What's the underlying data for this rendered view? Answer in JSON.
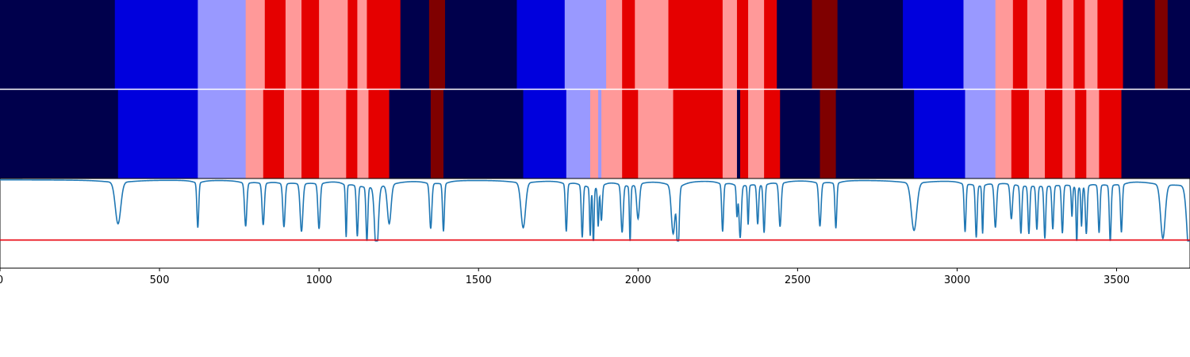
{
  "chart_data": [
    {
      "panel": "top-strip",
      "type": "heatmap",
      "xlim": [
        0,
        3730
      ],
      "segments": [
        {
          "start": 0,
          "end": 360,
          "color": "#00004c"
        },
        {
          "start": 360,
          "end": 620,
          "color": "#0000dd"
        },
        {
          "start": 620,
          "end": 770,
          "color": "#9999ff"
        },
        {
          "start": 770,
          "end": 830,
          "color": "#ff9999"
        },
        {
          "start": 830,
          "end": 895,
          "color": "#e50000"
        },
        {
          "start": 895,
          "end": 945,
          "color": "#ff9999"
        },
        {
          "start": 945,
          "end": 1000,
          "color": "#e50000"
        },
        {
          "start": 1000,
          "end": 1090,
          "color": "#ff9999"
        },
        {
          "start": 1090,
          "end": 1120,
          "color": "#e50000"
        },
        {
          "start": 1120,
          "end": 1150,
          "color": "#ff9999"
        },
        {
          "start": 1150,
          "end": 1255,
          "color": "#e50000"
        },
        {
          "start": 1255,
          "end": 1345,
          "color": "#00004c"
        },
        {
          "start": 1345,
          "end": 1395,
          "color": "#7f0000"
        },
        {
          "start": 1395,
          "end": 1620,
          "color": "#00004c"
        },
        {
          "start": 1620,
          "end": 1770,
          "color": "#0000dd"
        },
        {
          "start": 1770,
          "end": 1900,
          "color": "#9999ff"
        },
        {
          "start": 1900,
          "end": 1950,
          "color": "#ff9999"
        },
        {
          "start": 1950,
          "end": 1990,
          "color": "#e50000"
        },
        {
          "start": 1990,
          "end": 2095,
          "color": "#ff9999"
        },
        {
          "start": 2095,
          "end": 2265,
          "color": "#e50000"
        },
        {
          "start": 2265,
          "end": 2310,
          "color": "#ff9999"
        },
        {
          "start": 2310,
          "end": 2345,
          "color": "#e50000"
        },
        {
          "start": 2345,
          "end": 2395,
          "color": "#ff9999"
        },
        {
          "start": 2395,
          "end": 2435,
          "color": "#e50000"
        },
        {
          "start": 2435,
          "end": 2545,
          "color": "#00004c"
        },
        {
          "start": 2545,
          "end": 2625,
          "color": "#7f0000"
        },
        {
          "start": 2625,
          "end": 2830,
          "color": "#00004c"
        },
        {
          "start": 2830,
          "end": 3020,
          "color": "#0000dd"
        },
        {
          "start": 3020,
          "end": 3120,
          "color": "#9999ff"
        },
        {
          "start": 3120,
          "end": 3175,
          "color": "#ff9999"
        },
        {
          "start": 3175,
          "end": 3220,
          "color": "#e50000"
        },
        {
          "start": 3220,
          "end": 3280,
          "color": "#ff9999"
        },
        {
          "start": 3280,
          "end": 3330,
          "color": "#e50000"
        },
        {
          "start": 3330,
          "end": 3365,
          "color": "#ff9999"
        },
        {
          "start": 3365,
          "end": 3400,
          "color": "#e50000"
        },
        {
          "start": 3400,
          "end": 3440,
          "color": "#ff9999"
        },
        {
          "start": 3440,
          "end": 3520,
          "color": "#e50000"
        },
        {
          "start": 3520,
          "end": 3620,
          "color": "#00004c"
        },
        {
          "start": 3620,
          "end": 3660,
          "color": "#7f0000"
        },
        {
          "start": 3660,
          "end": 3730,
          "color": "#00004c"
        }
      ]
    },
    {
      "panel": "middle-strip",
      "type": "heatmap",
      "xlim": [
        0,
        3730
      ],
      "segments": [
        {
          "start": 0,
          "end": 370,
          "color": "#00004c"
        },
        {
          "start": 370,
          "end": 620,
          "color": "#0000dd"
        },
        {
          "start": 620,
          "end": 770,
          "color": "#9999ff"
        },
        {
          "start": 770,
          "end": 825,
          "color": "#ff9999"
        },
        {
          "start": 825,
          "end": 890,
          "color": "#e50000"
        },
        {
          "start": 890,
          "end": 945,
          "color": "#ff9999"
        },
        {
          "start": 945,
          "end": 1000,
          "color": "#e50000"
        },
        {
          "start": 1000,
          "end": 1085,
          "color": "#ff9999"
        },
        {
          "start": 1085,
          "end": 1120,
          "color": "#e50000"
        },
        {
          "start": 1120,
          "end": 1155,
          "color": "#ff9999"
        },
        {
          "start": 1155,
          "end": 1220,
          "color": "#e50000"
        },
        {
          "start": 1220,
          "end": 1350,
          "color": "#00004c"
        },
        {
          "start": 1350,
          "end": 1390,
          "color": "#7f0000"
        },
        {
          "start": 1390,
          "end": 1640,
          "color": "#00004c"
        },
        {
          "start": 1640,
          "end": 1775,
          "color": "#0000dd"
        },
        {
          "start": 1775,
          "end": 1850,
          "color": "#9999ff"
        },
        {
          "start": 1850,
          "end": 1875,
          "color": "#ff9999"
        },
        {
          "start": 1875,
          "end": 1885,
          "color": "#9999ff"
        },
        {
          "start": 1885,
          "end": 1950,
          "color": "#ff9999"
        },
        {
          "start": 1950,
          "end": 2000,
          "color": "#e50000"
        },
        {
          "start": 2000,
          "end": 2110,
          "color": "#ff9999"
        },
        {
          "start": 2110,
          "end": 2265,
          "color": "#e50000"
        },
        {
          "start": 2265,
          "end": 2310,
          "color": "#ff9999"
        },
        {
          "start": 2310,
          "end": 2320,
          "color": "#00004c"
        },
        {
          "start": 2320,
          "end": 2345,
          "color": "#e50000"
        },
        {
          "start": 2345,
          "end": 2395,
          "color": "#ff9999"
        },
        {
          "start": 2395,
          "end": 2445,
          "color": "#e50000"
        },
        {
          "start": 2445,
          "end": 2570,
          "color": "#00004c"
        },
        {
          "start": 2570,
          "end": 2620,
          "color": "#7f0000"
        },
        {
          "start": 2620,
          "end": 2865,
          "color": "#00004c"
        },
        {
          "start": 2865,
          "end": 3025,
          "color": "#0000dd"
        },
        {
          "start": 3025,
          "end": 3120,
          "color": "#9999ff"
        },
        {
          "start": 3120,
          "end": 3170,
          "color": "#ff9999"
        },
        {
          "start": 3170,
          "end": 3225,
          "color": "#e50000"
        },
        {
          "start": 3225,
          "end": 3275,
          "color": "#ff9999"
        },
        {
          "start": 3275,
          "end": 3330,
          "color": "#e50000"
        },
        {
          "start": 3330,
          "end": 3370,
          "color": "#ff9999"
        },
        {
          "start": 3370,
          "end": 3405,
          "color": "#e50000"
        },
        {
          "start": 3405,
          "end": 3445,
          "color": "#ff9999"
        },
        {
          "start": 3445,
          "end": 3515,
          "color": "#e50000"
        },
        {
          "start": 3515,
          "end": 3730,
          "color": "#00004c"
        }
      ]
    },
    {
      "panel": "bottom-line",
      "type": "line",
      "xlim": [
        0,
        3730
      ],
      "ylim": [
        0,
        1
      ],
      "xticks": [
        0,
        500,
        1000,
        1500,
        2000,
        2500,
        3000,
        3500
      ],
      "xtick_labels": [
        "0",
        "500",
        "1000",
        "1500",
        "2000",
        "2500",
        "3000",
        "3500"
      ],
      "threshold": 0.31,
      "threshold_color": "#e8000b",
      "line_color": "#1f77b4",
      "dips": [
        [
          370,
          0.52,
          12
        ],
        [
          620,
          0.48,
          4
        ],
        [
          770,
          0.5,
          5
        ],
        [
          825,
          0.52,
          5
        ],
        [
          890,
          0.5,
          5
        ],
        [
          945,
          0.45,
          6
        ],
        [
          1000,
          0.48,
          5
        ],
        [
          1085,
          0.4,
          3
        ],
        [
          1120,
          0.42,
          4
        ],
        [
          1150,
          0.38,
          4
        ],
        [
          1180,
          0.2,
          8
        ],
        [
          1220,
          0.55,
          8
        ],
        [
          1350,
          0.48,
          5
        ],
        [
          1390,
          0.45,
          4
        ],
        [
          1640,
          0.48,
          10
        ],
        [
          1775,
          0.45,
          4
        ],
        [
          1825,
          0.4,
          4
        ],
        [
          1850,
          0.45,
          3
        ],
        [
          1860,
          0.35,
          3
        ],
        [
          1875,
          0.55,
          3
        ],
        [
          1885,
          0.6,
          4
        ],
        [
          1950,
          0.45,
          5
        ],
        [
          1975,
          0.35,
          3
        ],
        [
          2000,
          0.6,
          6
        ],
        [
          2110,
          0.45,
          8
        ],
        [
          2125,
          0.2,
          5
        ],
        [
          2265,
          0.45,
          4
        ],
        [
          2310,
          0.65,
          3
        ],
        [
          2320,
          0.4,
          5
        ],
        [
          2345,
          0.55,
          3
        ],
        [
          2375,
          0.55,
          4
        ],
        [
          2395,
          0.45,
          4
        ],
        [
          2445,
          0.5,
          5
        ],
        [
          2570,
          0.5,
          5
        ],
        [
          2620,
          0.48,
          4
        ],
        [
          2865,
          0.45,
          12
        ],
        [
          3025,
          0.45,
          4
        ],
        [
          3060,
          0.4,
          4
        ],
        [
          3080,
          0.45,
          3
        ],
        [
          3120,
          0.5,
          5
        ],
        [
          3170,
          0.6,
          5
        ],
        [
          3200,
          0.45,
          4
        ],
        [
          3225,
          0.45,
          4
        ],
        [
          3250,
          0.5,
          4
        ],
        [
          3275,
          0.4,
          4
        ],
        [
          3300,
          0.5,
          4
        ],
        [
          3330,
          0.45,
          4
        ],
        [
          3360,
          0.65,
          3
        ],
        [
          3375,
          0.35,
          3
        ],
        [
          3390,
          0.55,
          3
        ],
        [
          3405,
          0.45,
          4
        ],
        [
          3445,
          0.45,
          4
        ],
        [
          3480,
          0.35,
          4
        ],
        [
          3515,
          0.45,
          4
        ],
        [
          3645,
          0.38,
          10
        ],
        [
          3730,
          0.05,
          12
        ]
      ]
    }
  ]
}
